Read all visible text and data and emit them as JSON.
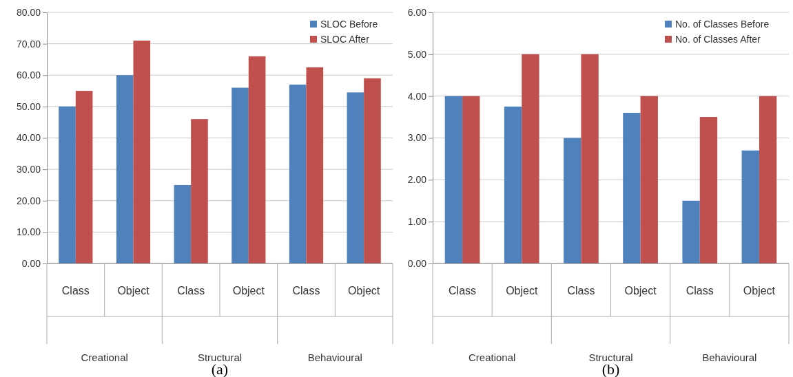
{
  "chart_data": [
    {
      "type": "bar",
      "title": "(a)",
      "categories": [
        "Class",
        "Object",
        "Class",
        "Object",
        "Class",
        "Object"
      ],
      "annotations": [
        "Creational",
        "Structural",
        "Behavioural"
      ],
      "series": [
        {
          "name": "SLOC Before",
          "color": "#4f81bd",
          "values": [
            50,
            60,
            25,
            56,
            57,
            54.5
          ]
        },
        {
          "name": "SLOC After",
          "color": "#c0504d",
          "values": [
            55,
            71,
            46,
            66,
            62.5,
            59
          ]
        }
      ],
      "ylim": [
        0,
        80
      ],
      "yticks": [
        {
          "value": 0,
          "label": "0.00"
        },
        {
          "value": 10,
          "label": "10.00"
        },
        {
          "value": 20,
          "label": "20.00"
        },
        {
          "value": 30,
          "label": "30.00"
        },
        {
          "value": 40,
          "label": "40.00"
        },
        {
          "value": 50,
          "label": "50.00"
        },
        {
          "value": 60,
          "label": "60.00"
        },
        {
          "value": 70,
          "label": "70.00"
        },
        {
          "value": 80,
          "label": "80.00"
        }
      ],
      "grid": "y",
      "legend": "top right"
    },
    {
      "type": "bar",
      "title": "(b)",
      "categories": [
        "Class",
        "Object",
        "Class",
        "Object",
        "Class",
        "Object"
      ],
      "annotations": [
        "Creational",
        "Structural",
        "Behavioural"
      ],
      "series": [
        {
          "name": "No. of Classes Before",
          "color": "#4f81bd",
          "values": [
            4,
            3.75,
            3,
            3.6,
            1.5,
            2.7
          ]
        },
        {
          "name": "No. of Classes After",
          "color": "#c0504d",
          "values": [
            4,
            5,
            5,
            4,
            3.5,
            4
          ]
        }
      ],
      "ylim": [
        0,
        6
      ],
      "yticks": [
        {
          "value": 0,
          "label": "0.00"
        },
        {
          "value": 1,
          "label": "1.00"
        },
        {
          "value": 2,
          "label": "2.00"
        },
        {
          "value": 3,
          "label": "3.00"
        },
        {
          "value": 4,
          "label": "4.00"
        },
        {
          "value": 5,
          "label": "5.00"
        },
        {
          "value": 6,
          "label": "6.00"
        }
      ],
      "grid": "y",
      "legend": "top right"
    }
  ]
}
